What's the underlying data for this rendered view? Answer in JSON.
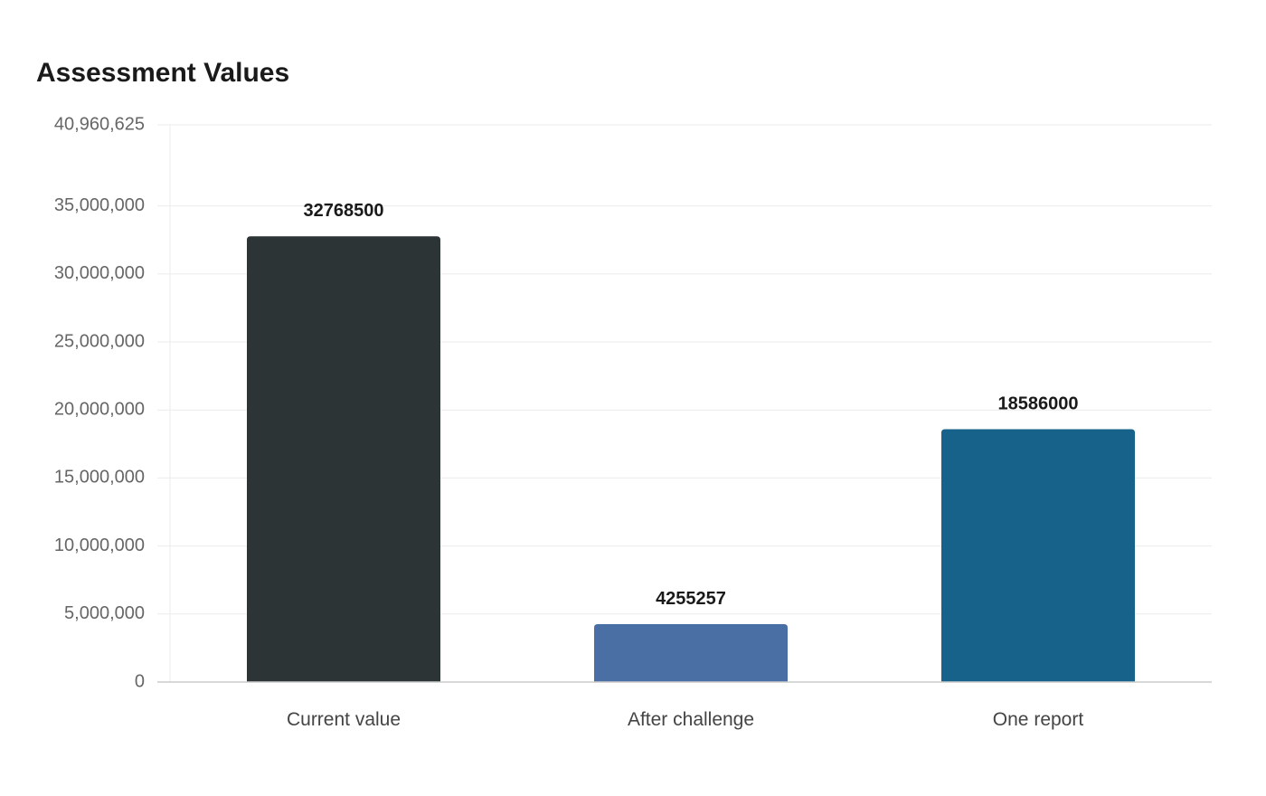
{
  "chart_data": {
    "type": "bar",
    "title": "Assessment Values",
    "xlabel": "",
    "ylabel": "",
    "categories": [
      "Current value",
      "After challenge",
      "One report"
    ],
    "values": [
      32768500,
      4255257,
      18586000
    ],
    "data_labels": [
      "32768500",
      "4255257",
      "18586000"
    ],
    "colors": [
      "#2d3436",
      "#4a6fa5",
      "#16628a"
    ],
    "ylim": [
      0,
      40960625
    ],
    "y_ticks": [
      0,
      5000000,
      10000000,
      15000000,
      20000000,
      25000000,
      30000000,
      35000000,
      40960625
    ],
    "y_tick_labels": [
      "0",
      "5,000,000",
      "10,000,000",
      "15,000,000",
      "20,000,000",
      "25,000,000",
      "30,000,000",
      "35,000,000",
      "40,960,625"
    ],
    "grid": true,
    "legend": "none"
  }
}
